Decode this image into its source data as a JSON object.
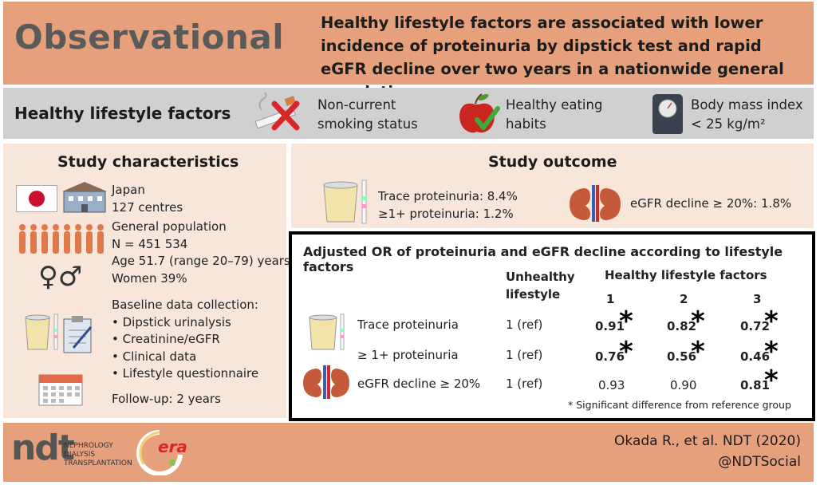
{
  "header": {
    "tag": "Observational",
    "headline": "Healthy lifestyle factors are associated with lower incidence of proteinuria by dipstick test and rapid eGFR decline over two years in a nationwide general population"
  },
  "factors": {
    "title": "Healthy lifestyle factors",
    "items": [
      {
        "line1": "Non-current",
        "line2": "smoking status",
        "icon": "no-smoking-icon"
      },
      {
        "line1": "Healthy eating",
        "line2": "habits",
        "icon": "apple-check-icon"
      },
      {
        "line1": "Body mass index",
        "line2": "< 25 kg/m²",
        "icon": "scale-icon"
      }
    ]
  },
  "characteristics": {
    "title": "Study characteristics",
    "location": [
      "Japan",
      "127 centres"
    ],
    "population": [
      "General population",
      "N = 451 534",
      "Age 51.7 (range 20–79) years",
      "Women 39%"
    ],
    "baseline_title": "Baseline data collection:",
    "baseline_items": [
      "• Dipstick urinalysis",
      "• Creatinine/eGFR",
      "• Clinical data",
      "• Lifestyle questionnaire"
    ],
    "followup": "Follow-up: 2 years"
  },
  "outcome": {
    "title": "Study outcome",
    "trace": "Trace proteinuria: 8.4%",
    "one_plus": "≥1+ proteinuria: 1.2%",
    "egfr": "eGFR decline ≥ 20%: 1.8%"
  },
  "table": {
    "title": "Adjusted OR of proteinuria and eGFR decline according to lifestyle factors",
    "col_unhealthy": [
      "Unhealthy",
      "lifestyle"
    ],
    "col_healthy": "Healthy lifestyle factors",
    "col_nums": [
      "1",
      "2",
      "3"
    ],
    "rows": [
      {
        "label": "Trace proteinuria",
        "ref": "1 (ref)",
        "values": [
          "0.91",
          "0.82",
          "0.72"
        ],
        "sig": [
          true,
          true,
          true
        ]
      },
      {
        "label": "≥ 1+ proteinuria",
        "ref": "1 (ref)",
        "values": [
          "0.76",
          "0.56",
          "0.46"
        ],
        "sig": [
          true,
          true,
          true
        ]
      },
      {
        "label": "eGFR decline ≥ 20%",
        "ref": "1 (ref)",
        "values": [
          "0.93",
          "0.90",
          "0.81"
        ],
        "sig": [
          false,
          false,
          true
        ]
      }
    ],
    "star": "*",
    "footnote": "* Significant difference from reference group"
  },
  "footer": {
    "logo_text": [
      "NEPHROLOGY",
      "DIALYSIS",
      "TRANSPLANTATION"
    ],
    "ndt_mark": "ndt",
    "era_mark": "era",
    "citation": "Okada R., et al. NDT (2020)",
    "handle": "@NDTSocial"
  },
  "colors": {
    "header_bg": "#e6a07c",
    "factors_bg": "#d0d0d0",
    "panel_bg": "#f8e6db",
    "border": "#000000"
  }
}
